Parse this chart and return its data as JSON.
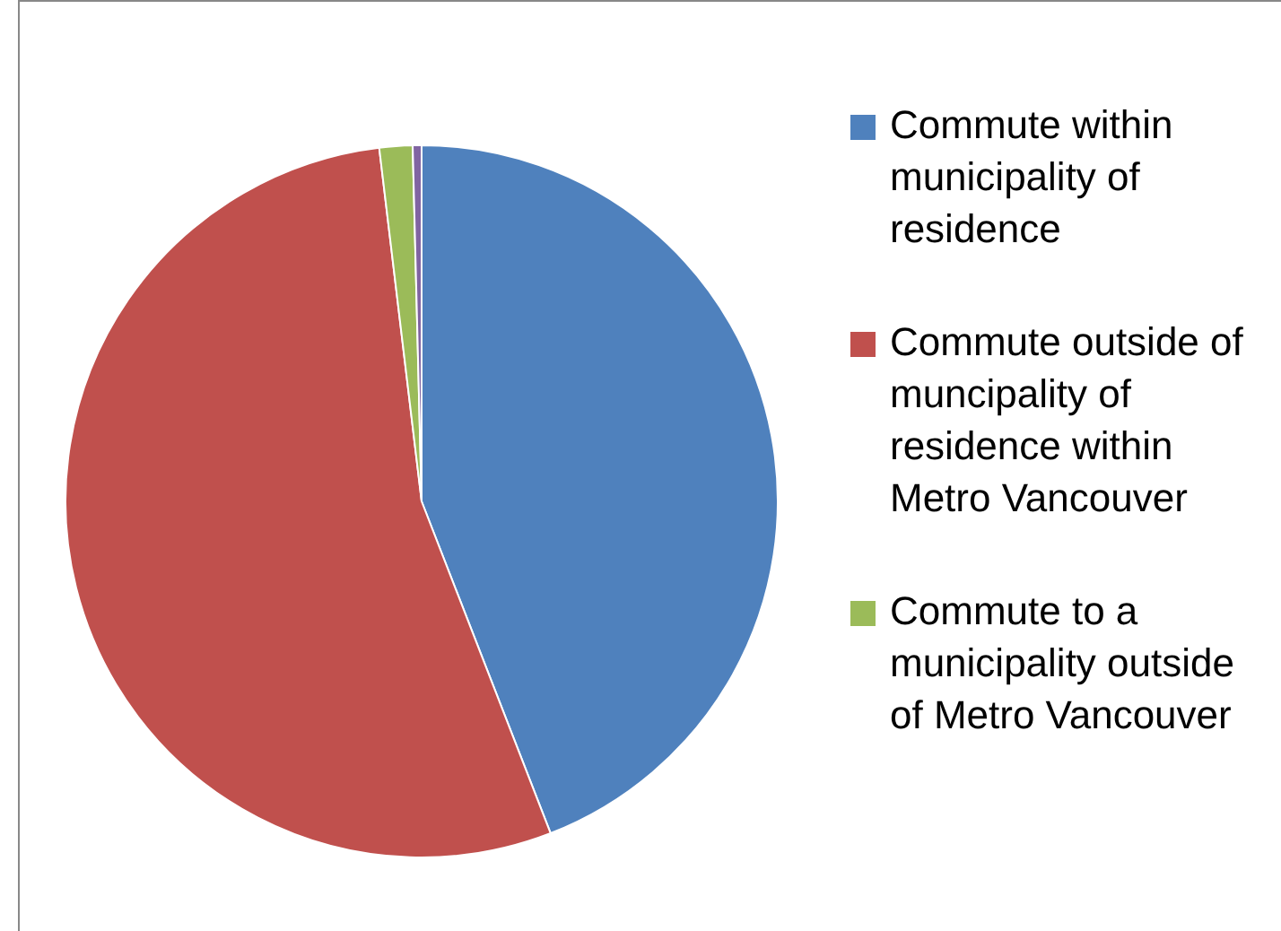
{
  "chart_data": {
    "type": "pie",
    "categories": [
      "Commute within municipality of residence",
      "Commute outside of muncipality of residence within Metro Vancouver",
      "Commute to a municipality outside of Metro Vancouver",
      null
    ],
    "values": [
      44.1,
      54.0,
      1.5,
      0.4
    ],
    "colors": [
      "#4f81bd",
      "#c0504d",
      "#9bbb59",
      "#8064a2"
    ],
    "legend": "right"
  }
}
